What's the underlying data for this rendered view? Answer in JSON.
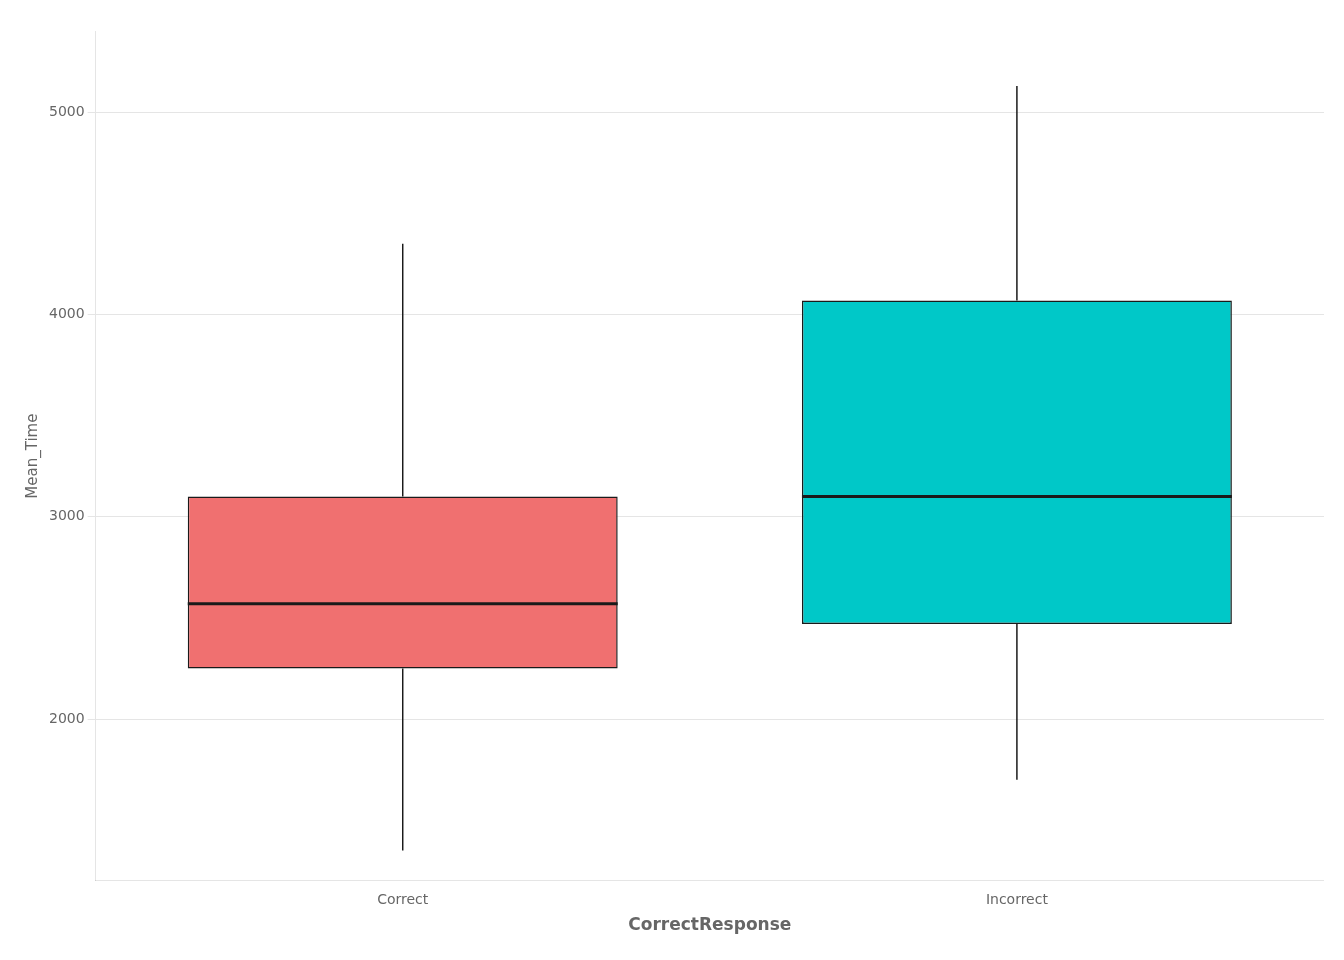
{
  "chart_data": {
    "type": "box",
    "categories": [
      "Correct",
      "Incorrect"
    ],
    "values": [
      {
        "whislo": 1350,
        "q1": 2250,
        "med": 2570,
        "q3": 3100,
        "whishi": 4350
      },
      {
        "whislo": 1700,
        "q1": 2470,
        "med": 3100,
        "q3": 4070,
        "whishi": 5130
      }
    ],
    "colors": [
      "#F07070",
      "#00C8C8"
    ],
    "xlabel": "CorrectResponse",
    "ylabel": "Mean_Time",
    "ylim": [
      1200,
      5400
    ],
    "yticks": [
      2000,
      3000,
      4000,
      5000
    ],
    "grid": true
  }
}
